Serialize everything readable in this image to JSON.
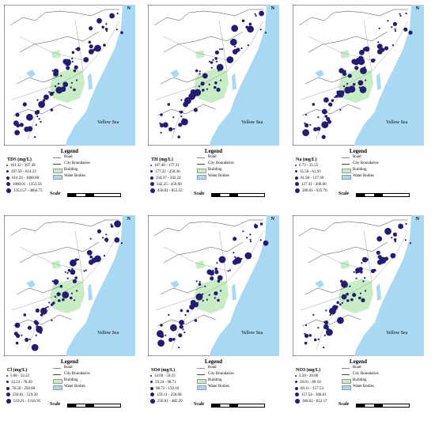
{
  "map": {
    "sea_label": "Yellow Sea",
    "north_label": "N",
    "legend_title": "Legend",
    "scale_label": "Scale",
    "key_items": [
      "Road",
      "City Boundaries",
      "Building",
      "Water Bodies"
    ],
    "colors": {
      "sea": "#a9d8f2",
      "land": "#ffffff",
      "building": "#c8ecc4",
      "dot": "#231c74",
      "road": "#8a8a8a"
    }
  },
  "panels": [
    {
      "variable": "TDS  (mg/L)",
      "ranges": [
        "161.32 - 397.49",
        "397.50 - 614.23",
        "614.24 - 1000.00",
        "1000.01 - 1353.56",
        "1353.57 - 4064.75"
      ]
    },
    {
      "variable": "TH  (mg/L)",
      "ranges": [
        "107.46 - 177.31",
        "177.32 - 256.36",
        "256.37 - 342.24",
        "342.25 - 450.00",
        "450.01 - 853.52"
      ]
    },
    {
      "variable": "Na  (mg/L)",
      "ranges": [
        "6.73 - 35.55",
        "35.56 - 61.93",
        "61.94 - 127.30",
        "127.31 - 200.00",
        "200.01 - 935.70"
      ]
    },
    {
      "variable": "Cl  (mg/L)",
      "ranges": [
        "5.08 - 32.22",
        "32.23 - 78.49",
        "78.50 - 250.00",
        "250.01 - 519.20",
        "519.21 - 2316.95"
      ]
    },
    {
      "variable": "SO4  (mg/L)",
      "ranges": [
        "14.09 - 59.23",
        "59.24 - 98.71",
        "98.72 - 159.10",
        "159.11 - 250.00",
        "250.01 - 485.29"
      ]
    },
    {
      "variable": "NO3  (mg/L)",
      "ranges": [
        "3.50 - 20.00",
        "20.01 - 89.10",
        "89.11 - 157.53",
        "157.54 - 360.01",
        "360.02 - 652.17"
      ]
    }
  ]
}
